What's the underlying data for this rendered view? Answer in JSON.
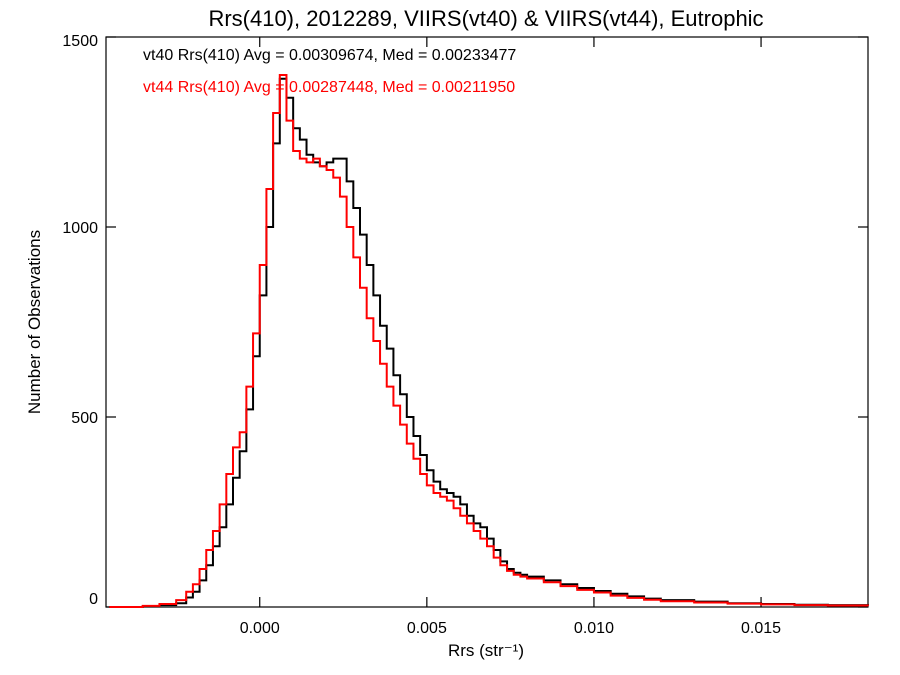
{
  "chart_data": {
    "type": "line",
    "title": "Rrs(410), 2012289, VIIRS(vt40) & VIIRS(vt44), Eutrophic",
    "xlabel": "Rrs (str⁻¹)",
    "ylabel": "Number of Observations",
    "xlim": [
      -0.0046,
      0.0182
    ],
    "ylim": [
      0,
      1500
    ],
    "xticks": [
      0.0,
      0.005,
      0.01,
      0.015
    ],
    "xtick_labels": [
      "0.000",
      "0.005",
      "0.010",
      "0.015"
    ],
    "yticks": [
      0,
      500,
      1000,
      1500
    ],
    "ytick_labels": [
      "0",
      "500",
      "1000",
      "1500"
    ],
    "grid": false,
    "legend_position": "top-left",
    "legend": [
      "vt40 Rrs(410) Avg = 0.00309674, Med = 0.00233477",
      "vt44 Rrs(410) Avg = 0.00287448, Med = 0.00211950"
    ],
    "colors": {
      "vt40": "#000000",
      "vt44": "#ff0000"
    },
    "x": [
      -0.0045,
      -0.004,
      -0.0035,
      -0.003,
      -0.0025,
      -0.0022,
      -0.002,
      -0.0018,
      -0.0016,
      -0.0014,
      -0.0012,
      -0.001,
      -0.0008,
      -0.0006,
      -0.0004,
      -0.0002,
      0.0,
      0.0002,
      0.0004,
      0.0006,
      0.0008,
      0.001,
      0.0012,
      0.0014,
      0.0016,
      0.0018,
      0.002,
      0.0022,
      0.0024,
      0.0026,
      0.0028,
      0.003,
      0.0032,
      0.0034,
      0.0036,
      0.0038,
      0.004,
      0.0042,
      0.0044,
      0.0046,
      0.0048,
      0.005,
      0.0052,
      0.0054,
      0.0056,
      0.0058,
      0.006,
      0.0062,
      0.0064,
      0.0066,
      0.0068,
      0.007,
      0.0072,
      0.0074,
      0.0076,
      0.0078,
      0.008,
      0.0085,
      0.009,
      0.0095,
      0.01,
      0.0105,
      0.011,
      0.0115,
      0.012,
      0.013,
      0.014,
      0.015,
      0.016,
      0.017,
      0.0182
    ],
    "series": [
      {
        "values": [
          0,
          0,
          2,
          5,
          10,
          25,
          40,
          70,
          110,
          160,
          210,
          270,
          340,
          410,
          520,
          660,
          820,
          1000,
          1220,
          1390,
          1340,
          1260,
          1230,
          1190,
          1170,
          1160,
          1170,
          1180,
          1180,
          1120,
          1050,
          980,
          900,
          820,
          740,
          680,
          610,
          560,
          500,
          450,
          400,
          360,
          330,
          310,
          300,
          290,
          270,
          240,
          220,
          210,
          180,
          150,
          120,
          100,
          90,
          85,
          80,
          70,
          60,
          50,
          42,
          35,
          28,
          22,
          18,
          14,
          10,
          8,
          6,
          5,
          4
        ]
      },
      {
        "values": [
          0,
          0,
          3,
          8,
          18,
          40,
          60,
          100,
          150,
          200,
          270,
          350,
          420,
          460,
          580,
          720,
          900,
          1100,
          1300,
          1400,
          1280,
          1200,
          1180,
          1170,
          1180,
          1160,
          1150,
          1130,
          1080,
          1000,
          920,
          840,
          760,
          700,
          640,
          580,
          530,
          480,
          430,
          390,
          350,
          320,
          300,
          290,
          280,
          260,
          240,
          220,
          200,
          180,
          160,
          130,
          110,
          95,
          85,
          80,
          75,
          65,
          55,
          45,
          38,
          30,
          24,
          19,
          15,
          12,
          9,
          7,
          5,
          4,
          3
        ]
      }
    ]
  }
}
